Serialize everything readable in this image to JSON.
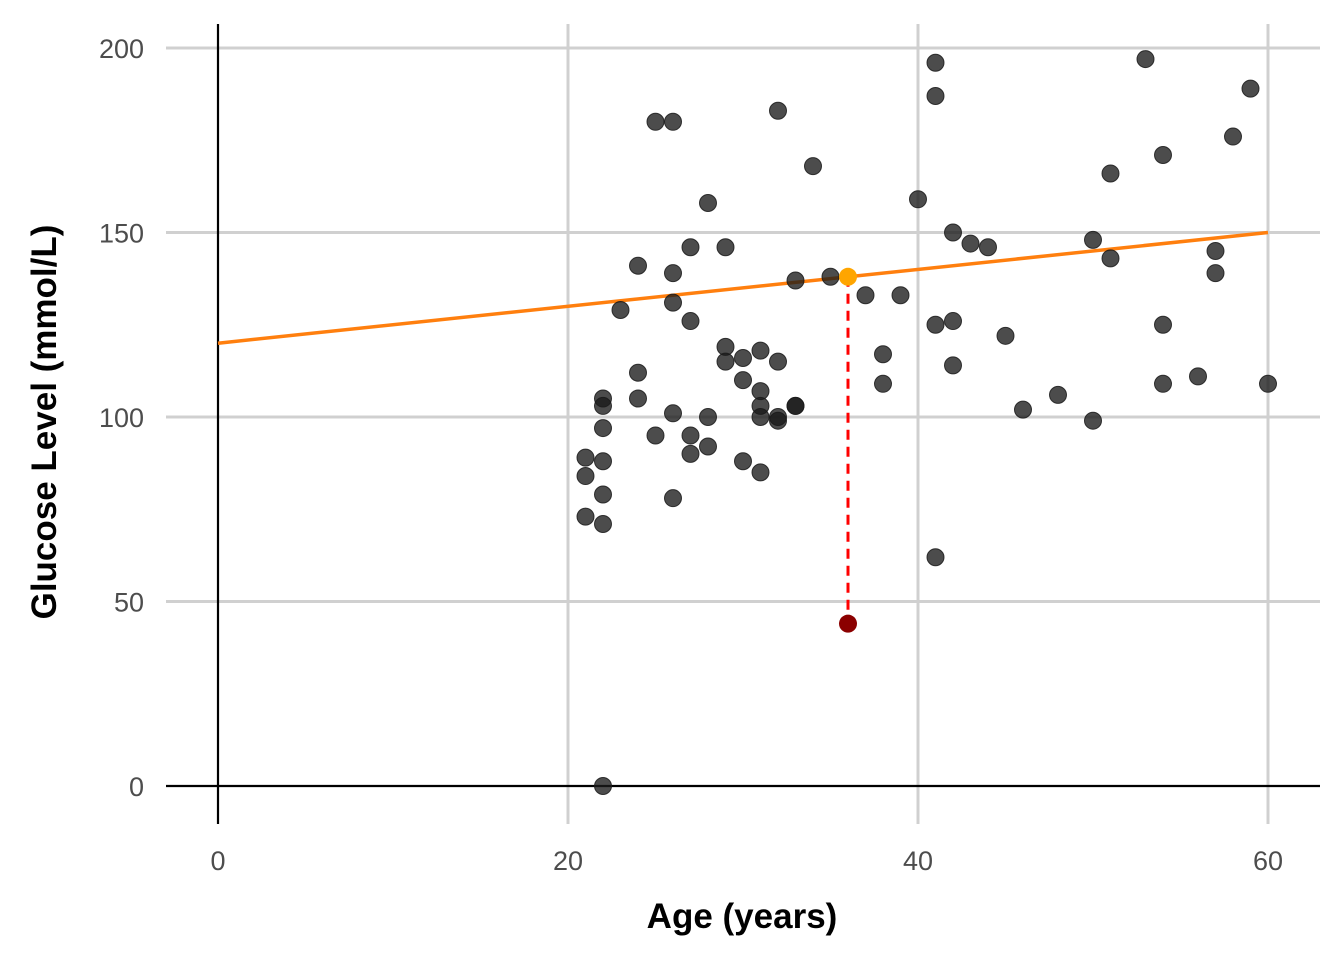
{
  "chart_data": {
    "type": "scatter",
    "title": "",
    "xlabel": "Age (years)",
    "ylabel": "Glucose Level (mmol/L)",
    "xlim": [
      -3,
      63
    ],
    "ylim": [
      -10,
      207
    ],
    "x_ticks": [
      0,
      20,
      40,
      60
    ],
    "y_ticks": [
      0,
      50,
      100,
      150,
      200
    ],
    "x_tick_labels": [
      "0",
      "20",
      "40",
      "60"
    ],
    "y_tick_labels": [
      "0",
      "50",
      "100",
      "150",
      "200"
    ],
    "grid": true,
    "legend": "none",
    "points": [
      [
        21,
        89
      ],
      [
        21,
        84
      ],
      [
        21,
        73
      ],
      [
        22,
        105
      ],
      [
        22,
        103
      ],
      [
        22,
        97
      ],
      [
        22,
        88
      ],
      [
        22,
        79
      ],
      [
        22,
        71
      ],
      [
        22,
        0
      ],
      [
        23,
        129
      ],
      [
        24,
        141
      ],
      [
        24,
        112
      ],
      [
        24,
        105
      ],
      [
        25,
        180
      ],
      [
        25,
        95
      ],
      [
        26,
        180
      ],
      [
        26,
        139
      ],
      [
        26,
        131
      ],
      [
        26,
        101
      ],
      [
        26,
        78
      ],
      [
        27,
        146
      ],
      [
        27,
        126
      ],
      [
        27,
        95
      ],
      [
        27,
        90
      ],
      [
        28,
        158
      ],
      [
        28,
        100
      ],
      [
        28,
        92
      ],
      [
        29,
        146
      ],
      [
        29,
        119
      ],
      [
        29,
        115
      ],
      [
        30,
        116
      ],
      [
        30,
        110
      ],
      [
        30,
        88
      ],
      [
        31,
        118
      ],
      [
        31,
        107
      ],
      [
        31,
        103
      ],
      [
        31,
        100
      ],
      [
        31,
        85
      ],
      [
        32,
        183
      ],
      [
        32,
        115
      ],
      [
        32,
        100
      ],
      [
        32,
        99
      ],
      [
        33,
        137
      ],
      [
        33,
        103
      ],
      [
        33,
        103
      ],
      [
        34,
        168
      ],
      [
        35,
        138
      ],
      [
        37,
        133
      ],
      [
        38,
        117
      ],
      [
        38,
        109
      ],
      [
        39,
        133
      ],
      [
        40,
        159
      ],
      [
        41,
        196
      ],
      [
        41,
        187
      ],
      [
        41,
        125
      ],
      [
        41,
        62
      ],
      [
        42,
        150
      ],
      [
        42,
        126
      ],
      [
        42,
        114
      ],
      [
        43,
        147
      ],
      [
        44,
        146
      ],
      [
        45,
        122
      ],
      [
        46,
        102
      ],
      [
        48,
        106
      ],
      [
        50,
        148
      ],
      [
        50,
        99
      ],
      [
        51,
        166
      ],
      [
        51,
        143
      ],
      [
        53,
        197
      ],
      [
        54,
        171
      ],
      [
        54,
        125
      ],
      [
        54,
        109
      ],
      [
        56,
        111
      ],
      [
        57,
        145
      ],
      [
        57,
        139
      ],
      [
        58,
        176
      ],
      [
        59,
        189
      ],
      [
        60,
        109
      ]
    ],
    "regression_line": {
      "x": [
        0,
        60
      ],
      "y": [
        120,
        150
      ]
    },
    "highlight": {
      "x": 36,
      "observed": 44,
      "fitted": 138
    },
    "colors": {
      "points": "#1a1a1a",
      "line": "#ff7f0e",
      "fitted_point": "#ffa500",
      "observed_point": "#8b0000",
      "residual": "#ff0000",
      "grid": "#d0d0d0",
      "axis": "#000000"
    }
  }
}
